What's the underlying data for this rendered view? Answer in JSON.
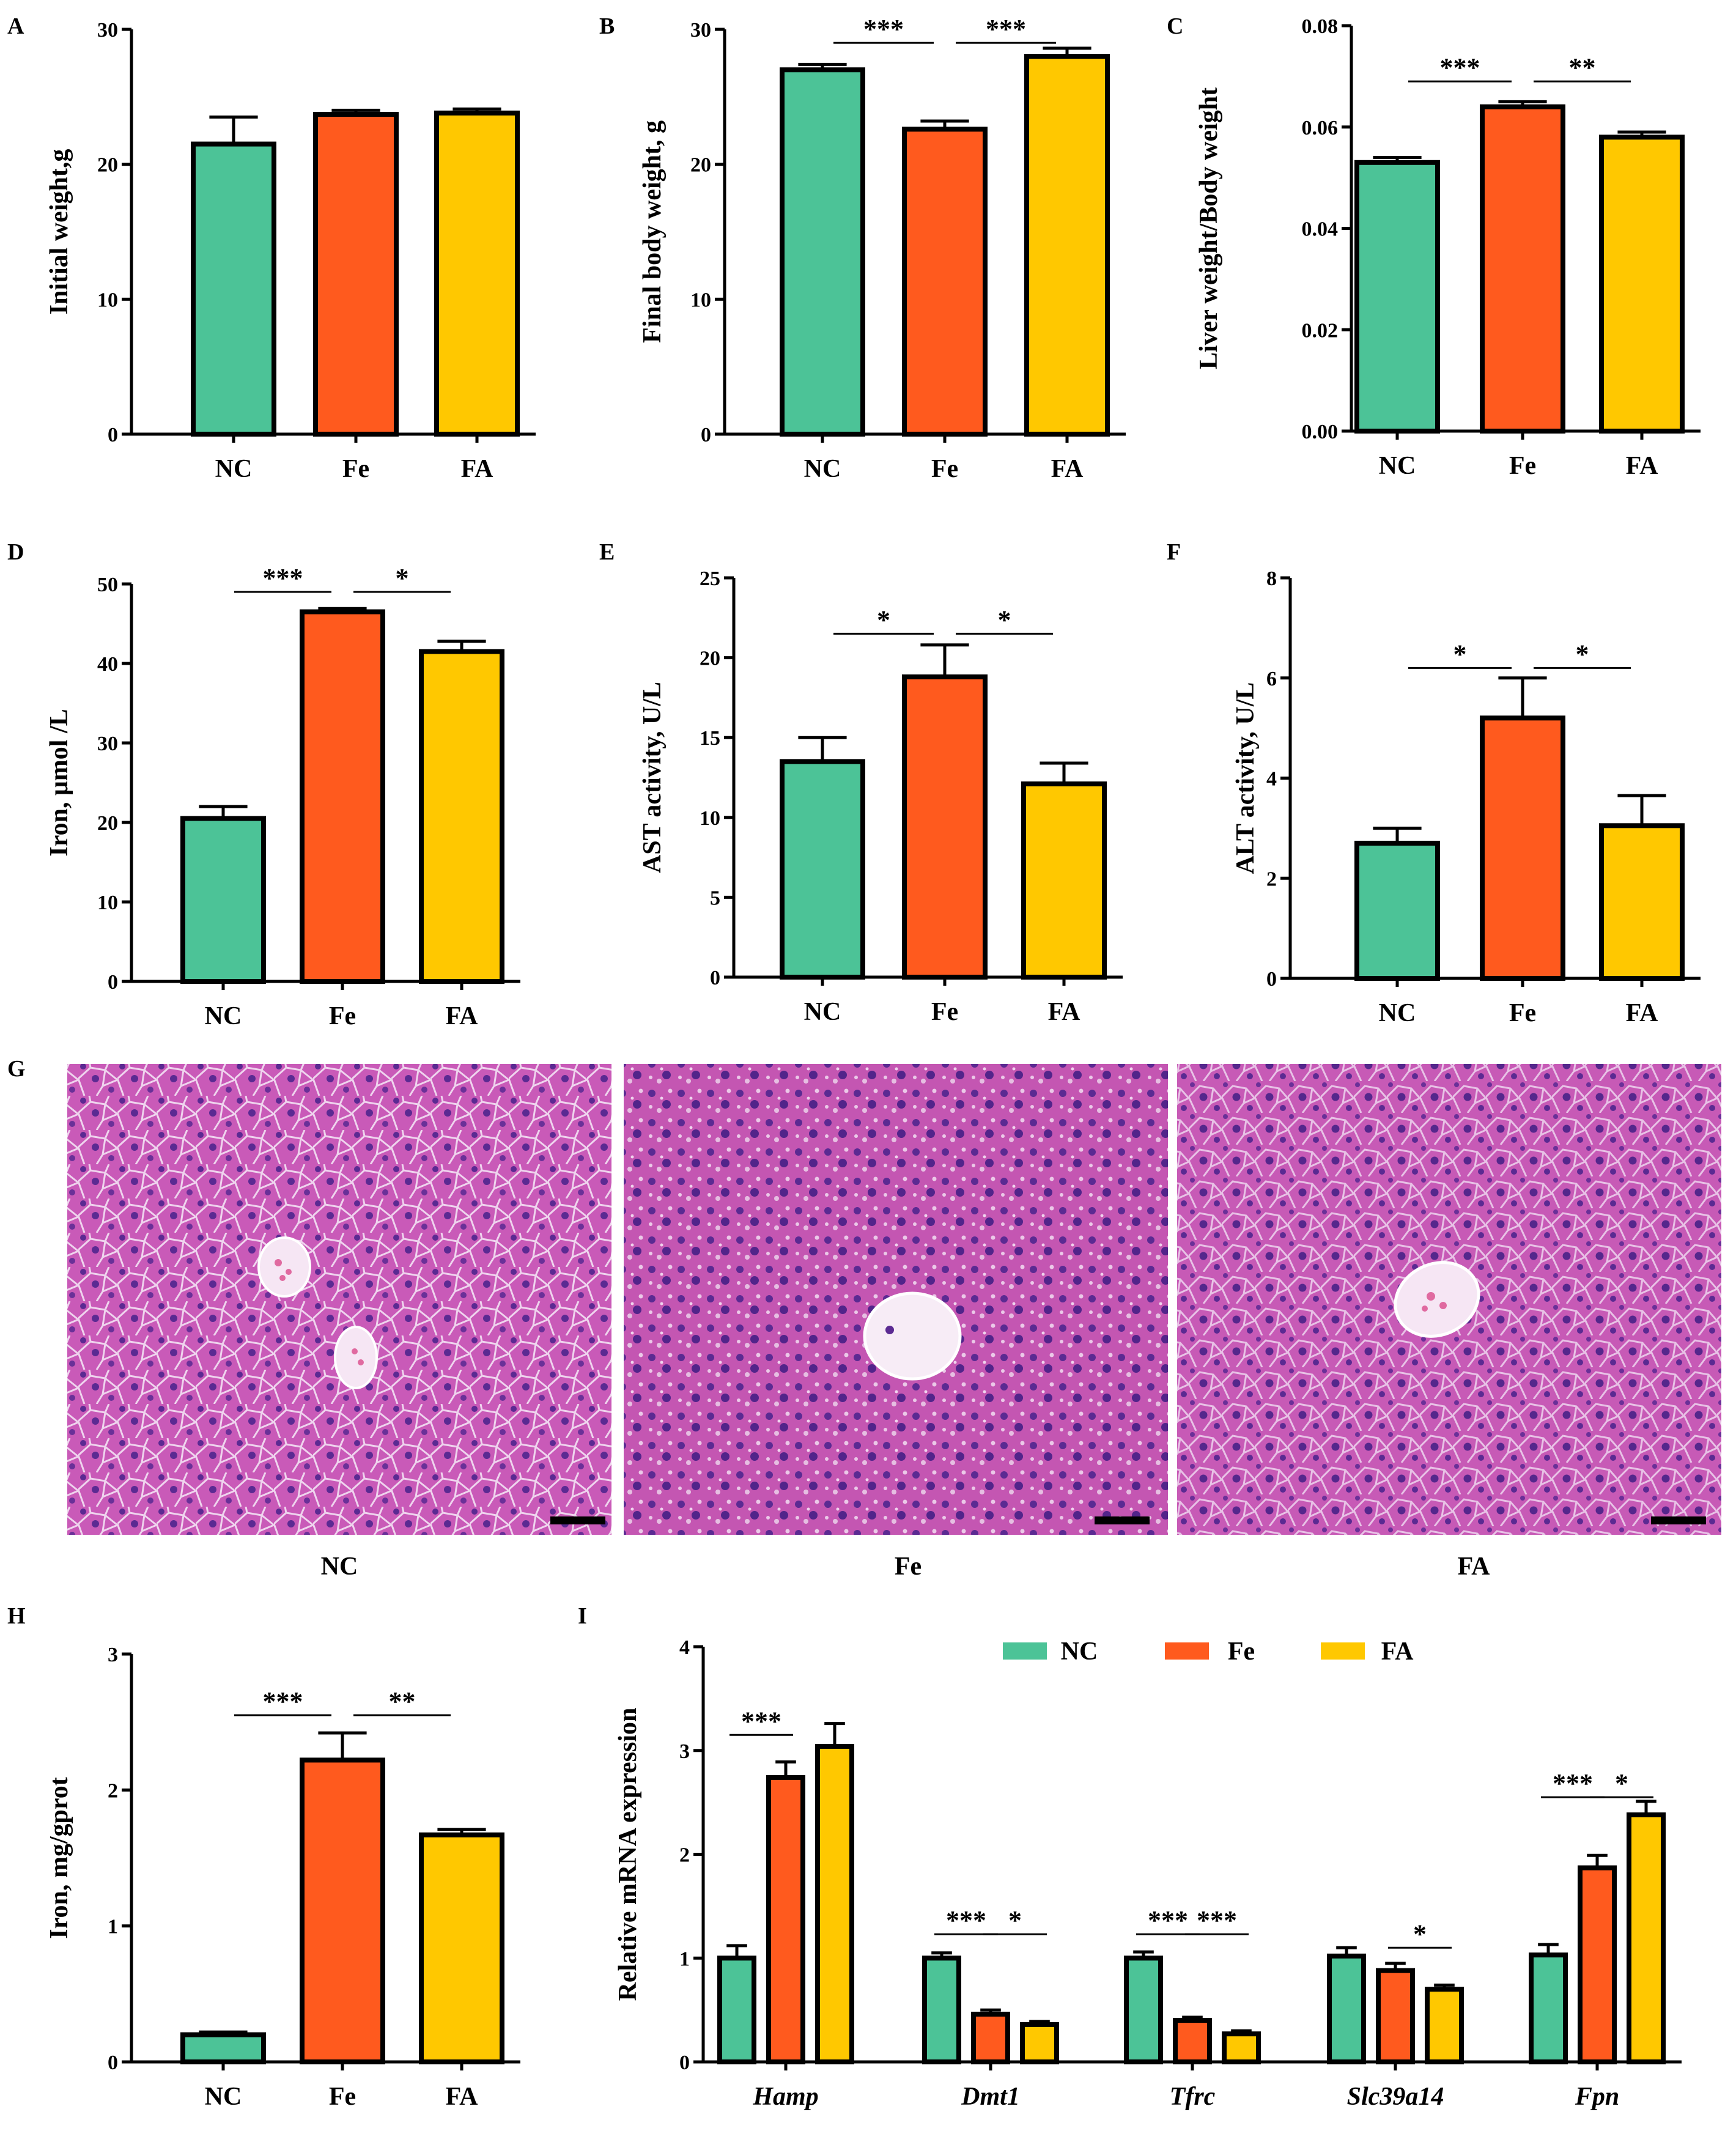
{
  "colors": {
    "NC": "#4cc397",
    "Fe": "#ff5a1e",
    "FA": "#ffc800",
    "axis": "#000000"
  },
  "micrographs": {
    "panel": "G",
    "labels": [
      "NC",
      "Fe",
      "FA"
    ],
    "tissue_color": "#c95ab8",
    "nucleus_color": "#5b2a92"
  },
  "chart_data": [
    {
      "panel": "A",
      "type": "bar",
      "categories": [
        "NC",
        "Fe",
        "FA"
      ],
      "values": [
        21.5,
        23.7,
        23.8
      ],
      "errors": [
        2.0,
        0.3,
        0.3
      ],
      "ylabel": "Initial weight,g",
      "ylim": [
        0,
        30
      ],
      "yticks": [
        "0",
        "10",
        "20",
        "30"
      ],
      "significance": []
    },
    {
      "panel": "B",
      "type": "bar",
      "categories": [
        "NC",
        "Fe",
        "FA"
      ],
      "values": [
        27.0,
        22.6,
        28.0
      ],
      "errors": [
        0.4,
        0.6,
        0.6
      ],
      "ylabel": "Final body weight, g",
      "ylim": [
        0,
        30
      ],
      "yticks": [
        "0",
        "10",
        "20",
        "30"
      ],
      "significance": [
        {
          "from": 0,
          "to": 1,
          "level": 29.0,
          "label": "***"
        },
        {
          "from": 1,
          "to": 2,
          "level": 29.0,
          "label": "***"
        }
      ]
    },
    {
      "panel": "C",
      "type": "bar",
      "categories": [
        "NC",
        "Fe",
        "FA"
      ],
      "values": [
        0.053,
        0.064,
        0.058
      ],
      "errors": [
        0.001,
        0.001,
        0.001
      ],
      "ylabel": "Liver weight/Body weight",
      "ylim": [
        0,
        0.08
      ],
      "yticks": [
        "0.00",
        "0.02",
        "0.04",
        "0.06",
        "0.08"
      ],
      "significance": [
        {
          "from": 0,
          "to": 1,
          "level": 0.069,
          "label": "***"
        },
        {
          "from": 1,
          "to": 2,
          "level": 0.069,
          "label": "**"
        }
      ]
    },
    {
      "panel": "D",
      "type": "bar",
      "categories": [
        "NC",
        "Fe",
        "FA"
      ],
      "values": [
        20.5,
        46.5,
        41.5
      ],
      "errors": [
        1.5,
        0.4,
        1.3
      ],
      "ylabel": "Iron,  μmol /L",
      "ylim": [
        0,
        50
      ],
      "yticks": [
        "0",
        "10",
        "20",
        "30",
        "40",
        "50"
      ],
      "significance": [
        {
          "from": 0,
          "to": 1,
          "level": 49.0,
          "label": "***"
        },
        {
          "from": 1,
          "to": 2,
          "level": 49.0,
          "label": "*"
        }
      ]
    },
    {
      "panel": "E",
      "type": "bar",
      "categories": [
        "NC",
        "Fe",
        "FA"
      ],
      "values": [
        13.5,
        18.8,
        12.1
      ],
      "errors": [
        1.5,
        2.0,
        1.3
      ],
      "ylabel": "AST activity, U/L",
      "ylim": [
        0,
        25
      ],
      "yticks": [
        "0",
        "5",
        "10",
        "15",
        "20",
        "25"
      ],
      "significance": [
        {
          "from": 0,
          "to": 1,
          "level": 21.5,
          "label": "*"
        },
        {
          "from": 1,
          "to": 2,
          "level": 21.5,
          "label": "*"
        }
      ]
    },
    {
      "panel": "F",
      "type": "bar",
      "categories": [
        "NC",
        "Fe",
        "FA"
      ],
      "values": [
        2.7,
        5.2,
        3.05
      ],
      "errors": [
        0.3,
        0.8,
        0.6
      ],
      "ylabel": "ALT activity, U/L",
      "ylim": [
        0,
        8
      ],
      "yticks": [
        "0",
        "2",
        "4",
        "6",
        "8"
      ],
      "significance": [
        {
          "from": 0,
          "to": 1,
          "level": 6.2,
          "label": "*"
        },
        {
          "from": 1,
          "to": 2,
          "level": 6.2,
          "label": "*"
        }
      ]
    },
    {
      "panel": "H",
      "type": "bar",
      "categories": [
        "NC",
        "Fe",
        "FA"
      ],
      "values": [
        0.2,
        2.22,
        1.67
      ],
      "errors": [
        0.02,
        0.2,
        0.04
      ],
      "ylabel": "Iron, mg/gprot",
      "ylim": [
        0,
        3
      ],
      "yticks": [
        "0",
        "1",
        "2",
        "3"
      ],
      "significance": [
        {
          "from": 0,
          "to": 1,
          "level": 2.55,
          "label": "***"
        },
        {
          "from": 1,
          "to": 2,
          "level": 2.55,
          "label": "**"
        }
      ]
    },
    {
      "panel": "I",
      "type": "grouped-bar",
      "categories": [
        "Hamp",
        "Dmt1",
        "Tfrc",
        "Slc39a14",
        "Fpn"
      ],
      "series": [
        {
          "name": "NC",
          "values": [
            1.0,
            1.0,
            1.0,
            1.02,
            1.03
          ],
          "errors": [
            0.12,
            0.05,
            0.06,
            0.08,
            0.1
          ]
        },
        {
          "name": "Fe",
          "values": [
            2.74,
            0.46,
            0.4,
            0.88,
            1.87
          ],
          "errors": [
            0.15,
            0.04,
            0.03,
            0.07,
            0.12
          ]
        },
        {
          "name": "FA",
          "values": [
            3.04,
            0.36,
            0.27,
            0.7,
            2.38
          ],
          "errors": [
            0.22,
            0.03,
            0.03,
            0.04,
            0.13
          ]
        }
      ],
      "ylabel": "Relative mRNA expression",
      "ylim": [
        0,
        4
      ],
      "yticks": [
        "0",
        "1",
        "2",
        "3",
        "4"
      ],
      "legend": "top",
      "significance": [
        {
          "group": 0,
          "from": 0,
          "to": 1,
          "level": 3.15,
          "label": "***"
        },
        {
          "group": 1,
          "from": 0,
          "to": 1,
          "level": 1.23,
          "label": "***"
        },
        {
          "group": 1,
          "from": 1,
          "to": 2,
          "level": 1.23,
          "label": "*"
        },
        {
          "group": 2,
          "from": 0,
          "to": 1,
          "level": 1.23,
          "label": "***"
        },
        {
          "group": 2,
          "from": 1,
          "to": 2,
          "level": 1.23,
          "label": "***"
        },
        {
          "group": 3,
          "from": 1,
          "to": 2,
          "level": 1.1,
          "label": "*"
        },
        {
          "group": 4,
          "from": 0,
          "to": 1,
          "level": 2.55,
          "label": "***"
        },
        {
          "group": 4,
          "from": 1,
          "to": 2,
          "level": 2.55,
          "label": "*"
        }
      ]
    }
  ]
}
